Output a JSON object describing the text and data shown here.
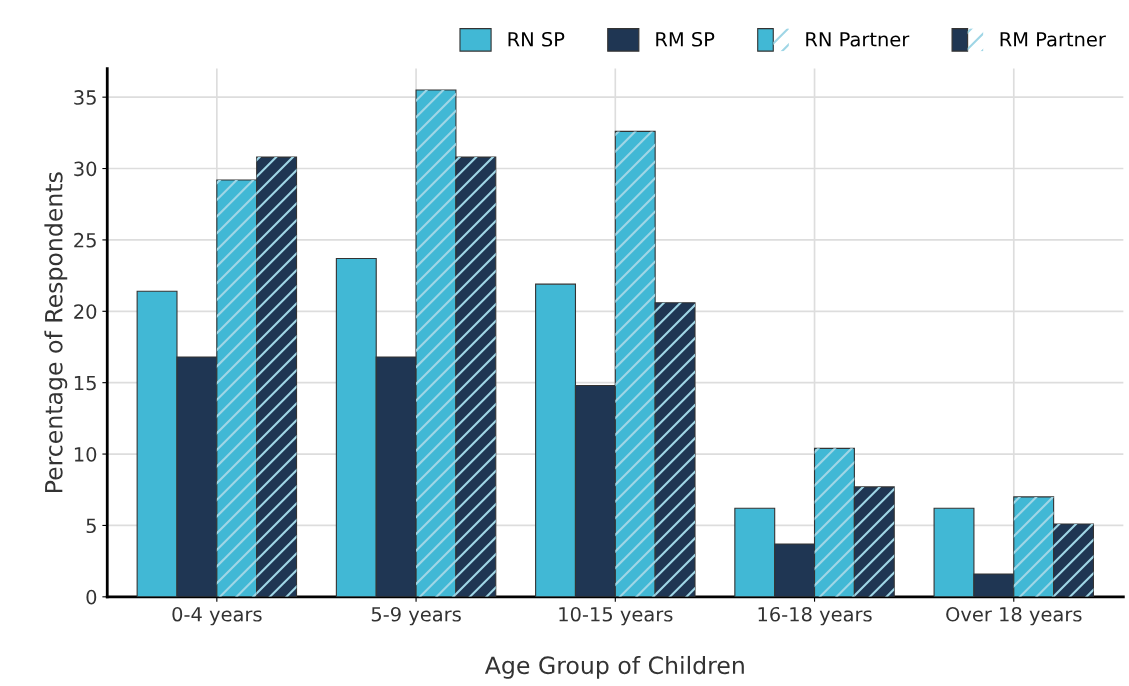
{
  "chart_data": {
    "type": "bar",
    "xlabel": "Age Group of Children",
    "ylabel": "Percentage of Respondents",
    "categories": [
      "0-4 years",
      "5-9 years",
      "10-15 years",
      "16-18 years",
      "Over 18 years"
    ],
    "series": [
      {
        "name": "RN SP",
        "color": "#41b8d5",
        "values": [
          21.4,
          23.7,
          21.9,
          6.2,
          6.2
        ]
      },
      {
        "name": "RM SP",
        "color": "#1f3653",
        "values": [
          16.8,
          16.8,
          14.8,
          3.7,
          1.6
        ]
      },
      {
        "name": "RN Partner",
        "color": "#41b8d5",
        "values": [
          29.2,
          35.5,
          32.6,
          10.4,
          7.0
        ]
      },
      {
        "name": "RM Partner",
        "color": "#1f3653",
        "values": [
          30.8,
          30.8,
          20.6,
          7.7,
          5.1
        ]
      }
    ],
    "ylim": [
      0,
      37
    ],
    "yticks": [
      0,
      5,
      10,
      15,
      20,
      25,
      30,
      35
    ],
    "grid": true,
    "legend": "top right"
  }
}
